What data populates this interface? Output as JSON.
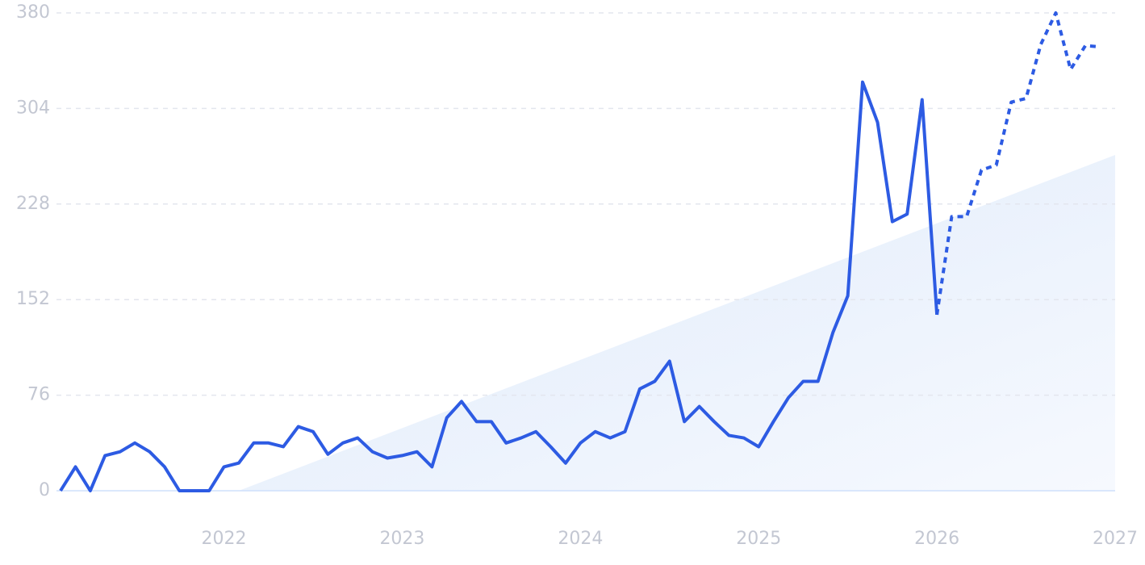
{
  "chart_data": {
    "type": "line",
    "xlim": [
      2021.083,
      2027
    ],
    "xticks": [
      2022,
      2023,
      2024,
      2025,
      2026,
      2027
    ],
    "ylim": [
      0,
      380
    ],
    "yticks": [
      0,
      76,
      152,
      228,
      304,
      380
    ],
    "grid": true,
    "trend": {
      "color": "#e3eefc",
      "x": [
        2022.083,
        2027
      ],
      "values": [
        0,
        267
      ]
    },
    "series": [
      {
        "color": "#2d5be3",
        "style": "solid",
        "x": [
          2021.083,
          2021.167,
          2021.25,
          2021.333,
          2021.417,
          2021.5,
          2021.583,
          2021.667,
          2021.75,
          2021.833,
          2021.917,
          2022.0,
          2022.083,
          2022.167,
          2022.25,
          2022.333,
          2022.417,
          2022.5,
          2022.583,
          2022.667,
          2022.75,
          2022.833,
          2022.917,
          2023.0,
          2023.083,
          2023.167,
          2023.25,
          2023.333,
          2023.417,
          2023.5,
          2023.583,
          2023.667,
          2023.75,
          2023.833,
          2023.917,
          2024.0,
          2024.083,
          2024.167,
          2024.25,
          2024.333,
          2024.417,
          2024.5,
          2024.583,
          2024.667,
          2024.75,
          2024.833,
          2024.917,
          2025.0,
          2025.083,
          2025.167,
          2025.25,
          2025.333,
          2025.417,
          2025.5,
          2025.583,
          2025.667,
          2025.75,
          2025.833,
          2025.917,
          2026.0
        ],
        "values": [
          0,
          19,
          0,
          28,
          31,
          38,
          31,
          19,
          0,
          0,
          0,
          19,
          22,
          38,
          38,
          35,
          51,
          47,
          29,
          38,
          42,
          31,
          26,
          28,
          31,
          19,
          58,
          71,
          55,
          55,
          38,
          42,
          47,
          35,
          22,
          38,
          47,
          42,
          47,
          81,
          87,
          103,
          55,
          67,
          55,
          44,
          42,
          35,
          55,
          74,
          87,
          87,
          126,
          155,
          325,
          293,
          214,
          220,
          311,
          140
        ]
      },
      {
        "color": "#2d5be3",
        "style": "dotted",
        "x": [
          2026.0,
          2026.083,
          2026.167,
          2026.25,
          2026.333,
          2026.417,
          2026.5,
          2026.583,
          2026.667,
          2026.75,
          2026.833,
          2026.917
        ],
        "values": [
          140,
          218,
          218,
          255,
          259,
          309,
          312,
          355,
          380,
          335,
          354,
          353
        ]
      }
    ]
  }
}
